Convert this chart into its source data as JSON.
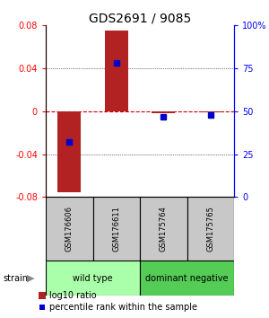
{
  "title": "GDS2691 / 9085",
  "samples": [
    "GSM176606",
    "GSM176611",
    "GSM175764",
    "GSM175765"
  ],
  "log10_ratios": [
    -0.075,
    0.075,
    -0.002,
    -0.001
  ],
  "percentile_ranks": [
    32,
    78,
    47,
    48
  ],
  "ylim": [
    -0.08,
    0.08
  ],
  "yticks_left": [
    -0.08,
    -0.04,
    0,
    0.04,
    0.08
  ],
  "yticks_right": [
    0,
    25,
    50,
    75,
    100
  ],
  "bar_color": "#b22222",
  "marker_color": "#0000cc",
  "zero_line_color": "#cc0000",
  "dotted_line_color": "#000000",
  "groups": [
    {
      "label": "wild type",
      "samples": [
        0,
        1
      ],
      "color": "#aaffaa"
    },
    {
      "label": "dominant negative",
      "samples": [
        2,
        3
      ],
      "color": "#55cc55"
    }
  ],
  "legend_bar_label": "log10 ratio",
  "legend_marker_label": "percentile rank within the sample",
  "strain_label": "strain",
  "sample_label_bg": "#c8c8c8",
  "background_color": "#ffffff",
  "title_fontsize": 10,
  "tick_fontsize": 7,
  "sample_fontsize": 6,
  "group_fontsize": 7,
  "legend_fontsize": 7
}
